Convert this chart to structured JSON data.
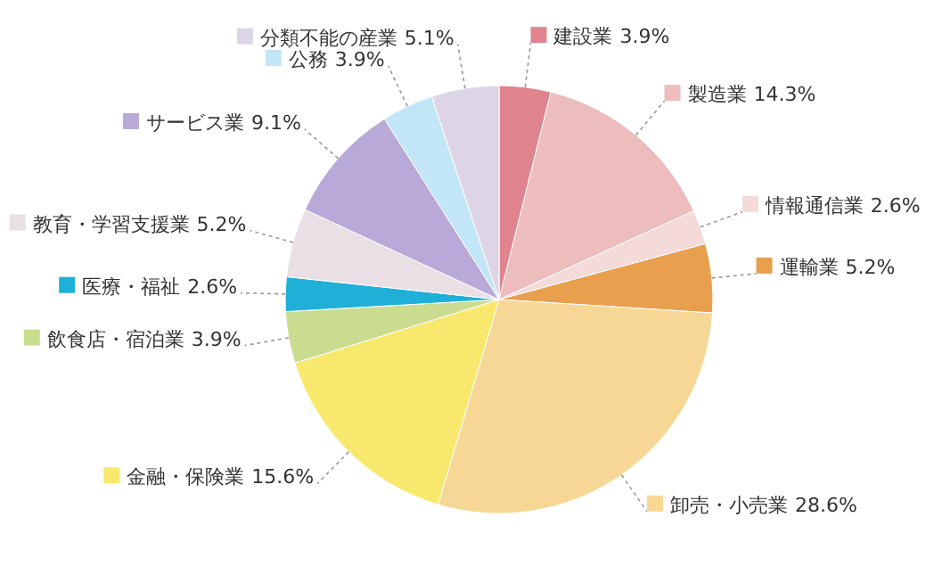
{
  "chart_data": {
    "type": "pie",
    "categories": [
      "建設業",
      "製造業",
      "情報通信業",
      "運輸業",
      "卸売・小売業",
      "金融・保険業",
      "飲食店・宿泊業",
      "医療・福祉",
      "教育・学習支援業",
      "サービス業",
      "公務",
      "分類不能の産業"
    ],
    "values": [
      3.9,
      14.3,
      2.6,
      5.2,
      28.6,
      15.6,
      3.9,
      2.6,
      5.2,
      9.1,
      3.9,
      5.1
    ],
    "colors": [
      "#e0858f",
      "#edbcbc",
      "#f5dada",
      "#e8a04e",
      "#f6d795",
      "#f9e86e",
      "#c9dc90",
      "#1fb0d8",
      "#ebdfe6",
      "#b9a9d9",
      "#c2e5f8",
      "#ddd5e5"
    ],
    "value_labels": [
      "3.9%",
      "14.3%",
      "2.6%",
      "5.2%",
      "28.6%",
      "15.6%",
      "3.9%",
      "2.6%",
      "5.2%",
      "9.1%",
      "3.9%",
      "5.1%"
    ],
    "legend": "top left"
  }
}
